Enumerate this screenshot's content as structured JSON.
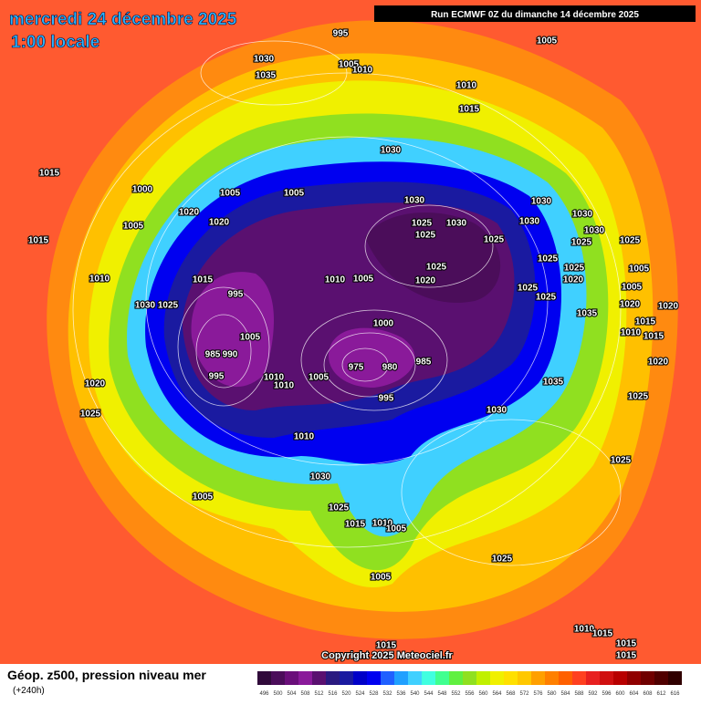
{
  "header": {
    "date": "mercredi 24 décembre 2025",
    "time": "1:00 locale",
    "run": "Run ECMWF 0Z du dimanche 14 décembre 2025"
  },
  "copyright": "Copyright 2025 Meteociel.fr",
  "footer": {
    "title": "Géop. z500, pression niveau mer",
    "lead": "(+240h)"
  },
  "colorbar": {
    "values": [
      496,
      500,
      504,
      508,
      512,
      516,
      520,
      524,
      528,
      532,
      536,
      540,
      544,
      548,
      552,
      556,
      560,
      564,
      568,
      572,
      576,
      580,
      584,
      588,
      592,
      596,
      600,
      604,
      608,
      612,
      616
    ],
    "colors": [
      "#300a3a",
      "#4b0d5a",
      "#6a0f7a",
      "#8a1a9a",
      "#5a1070",
      "#2a1a80",
      "#1a1aa0",
      "#0000c8",
      "#0000f0",
      "#2060ff",
      "#20a0ff",
      "#40d0ff",
      "#40ffe0",
      "#40ff90",
      "#60f040",
      "#90e020",
      "#c0f000",
      "#f0f000",
      "#ffe000",
      "#ffc800",
      "#ffa000",
      "#ff8000",
      "#ff6000",
      "#ff4020",
      "#e82020",
      "#d01010",
      "#b80000",
      "#900000",
      "#700000",
      "#500000",
      "#300000"
    ]
  },
  "pressure_labels": [
    995,
    1005,
    1030,
    1005,
    1010,
    1035,
    1010,
    1015,
    1030,
    1015,
    1000,
    1005,
    1005,
    1030,
    1030,
    1025,
    1030,
    1030,
    1030,
    1030,
    1005,
    1015,
    1020,
    1020,
    1025,
    1025,
    1025,
    1025,
    1010,
    1005,
    1025,
    1020,
    1025,
    1010,
    1015,
    1025,
    1025,
    1020,
    1005,
    995,
    1030,
    1025,
    1025,
    1005,
    1020,
    1020,
    1000,
    1035,
    1015,
    1010,
    1015,
    1005,
    985,
    990,
    975,
    980,
    985,
    995,
    1010,
    1005,
    1010,
    995,
    1020,
    1020,
    1025,
    1030,
    1035,
    1025,
    1010,
    1025,
    1030,
    1005,
    1025,
    1015,
    1010,
    1005,
    1025,
    1005,
    1010,
    1015,
    1015,
    1015,
    1015
  ]
}
